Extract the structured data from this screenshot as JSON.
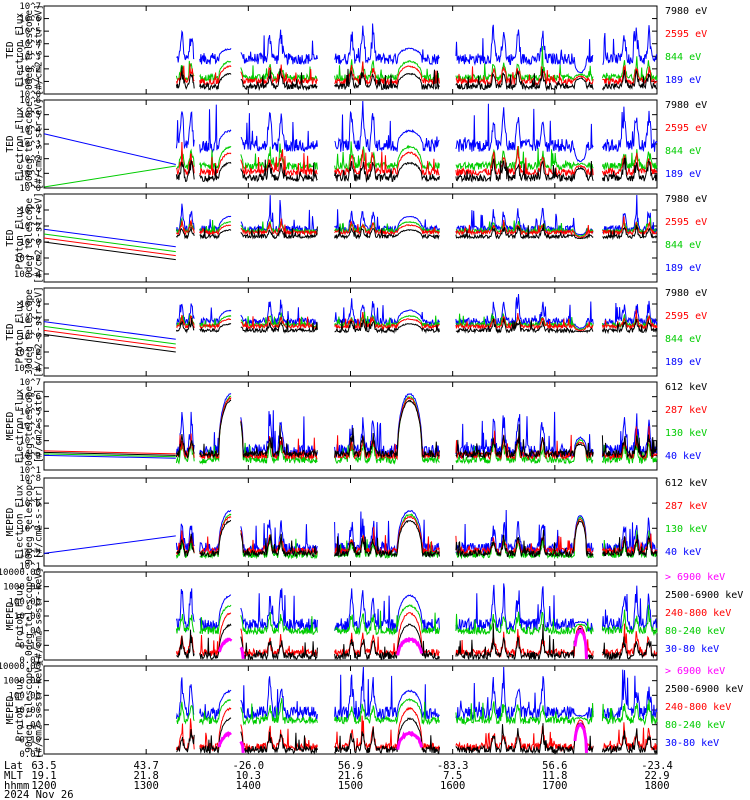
{
  "chart_data": [
    {
      "type": "line",
      "ylabel": [
        "TED",
        "Electron Flux",
        "0deg telescope",
        "[#/cm2-s-str-eV]"
      ],
      "yscale": "log",
      "yticks": [
        [
          "10^0",
          0
        ],
        [
          "10^1",
          1
        ],
        [
          "10^2",
          2
        ],
        [
          "10^3",
          3
        ],
        [
          "10^4",
          4
        ],
        [
          "10^5",
          5
        ],
        [
          "10^6",
          6
        ],
        [
          "10^7",
          7
        ]
      ],
      "ylim": [
        0,
        7
      ],
      "legend": [
        {
          "name": "7980 eV",
          "color": "#000000"
        },
        {
          "name": "2595 eV",
          "color": "#ff0000"
        },
        {
          "name": "844 eV",
          "color": "#00cc00"
        },
        {
          "name": "189 eV",
          "color": "#0000ff"
        }
      ],
      "levels": {
        "blue": 2.8,
        "green": 1.3,
        "red": 1.0,
        "black": 0.6
      },
      "peak_levels": [
        3.6,
        2.6,
        2.2,
        1.6
      ],
      "pass_peak": 1.7,
      "pre": null
    },
    {
      "type": "line",
      "ylabel": [
        "TED",
        "Electron Flux",
        "30deg telescope",
        "[#/cm2-s-str-eV]"
      ],
      "yscale": "log",
      "yticks": [
        [
          "10^0",
          0
        ],
        [
          "10^1",
          1
        ],
        [
          "10^2",
          2
        ],
        [
          "10^3",
          3
        ],
        [
          "10^4",
          4
        ],
        [
          "10^5",
          5
        ],
        [
          "10^6",
          6
        ]
      ],
      "ylim": [
        0,
        6
      ],
      "legend": [
        {
          "name": "7980 eV",
          "color": "#000000"
        },
        {
          "name": "2595 eV",
          "color": "#ff0000"
        },
        {
          "name": "844 eV",
          "color": "#00cc00"
        },
        {
          "name": "189 eV",
          "color": "#0000ff"
        }
      ],
      "levels": {
        "blue": 2.9,
        "green": 1.5,
        "red": 1.1,
        "black": 0.7
      },
      "peak_levels": [
        3.9,
        2.8,
        2.4,
        1.7
      ],
      "pass_peak": 1.8,
      "pre": [
        {
          "color": "#0000ff",
          "from": 3.7,
          "to": 1.6
        },
        {
          "color": "#00cc00",
          "from": -0.7,
          "to": 1.5
        }
      ]
    },
    {
      "type": "line",
      "ylabel": [
        "TED",
        "Proton Flux",
        "0deg telescope",
        "[#/cm2-s-str-eV]"
      ],
      "yscale": "log",
      "yticks": [
        [
          "10^-4",
          -4
        ],
        [
          "10^-2",
          -2
        ],
        [
          "10^0",
          0
        ],
        [
          "10^2",
          2
        ],
        [
          "10^4",
          4
        ]
      ],
      "ylim": [
        -5,
        6
      ],
      "legend": [
        {
          "name": "7980 eV",
          "color": "#000000"
        },
        {
          "name": "2595 eV",
          "color": "#ff0000"
        },
        {
          "name": "844 eV",
          "color": "#00cc00"
        },
        {
          "name": "189 eV",
          "color": "#0000ff"
        }
      ],
      "levels": {
        "blue": 1.6,
        "green": 1.4,
        "red": 1.2,
        "black": 0.7
      },
      "peak_levels": [
        3.2,
        2.5,
        2.1,
        1.5
      ],
      "pass_peak": 0.9,
      "pre": [
        {
          "color": "#0000ff",
          "from": 1.6,
          "to": -0.6
        },
        {
          "color": "#00cc00",
          "from": 1.0,
          "to": -1.2
        },
        {
          "color": "#ff0000",
          "from": 0.5,
          "to": -1.7
        },
        {
          "color": "#000000",
          "from": 0.0,
          "to": -2.2
        }
      ]
    },
    {
      "type": "line",
      "ylabel": [
        "TED",
        "Proton Flux",
        "30deg telescope",
        "[#/cm2-s-str-eV]"
      ],
      "yscale": "log",
      "yticks": [
        [
          "10^-4",
          -4
        ],
        [
          "10^-2",
          -2
        ],
        [
          "10^0",
          0
        ],
        [
          "10^2",
          2
        ],
        [
          "10^4",
          4
        ]
      ],
      "ylim": [
        -5,
        6
      ],
      "legend": [
        {
          "name": "7980 eV",
          "color": "#000000"
        },
        {
          "name": "2595 eV",
          "color": "#ff0000"
        },
        {
          "name": "844 eV",
          "color": "#00cc00"
        },
        {
          "name": "189 eV",
          "color": "#0000ff"
        }
      ],
      "levels": {
        "blue": 1.8,
        "green": 1.4,
        "red": 1.2,
        "black": 0.7
      },
      "peak_levels": [
        3.2,
        2.5,
        2.1,
        1.5
      ],
      "pass_peak": 1.0,
      "pre": [
        {
          "color": "#0000ff",
          "from": 1.8,
          "to": -0.4
        },
        {
          "color": "#00cc00",
          "from": 1.2,
          "to": -1.0
        },
        {
          "color": "#ff0000",
          "from": 0.7,
          "to": -1.5
        },
        {
          "color": "#000000",
          "from": 0.2,
          "to": -2.0
        }
      ]
    },
    {
      "type": "line",
      "ylabel": [
        "MEPED",
        "Electron Flux",
        "0deg telescope",
        "[#/cm2-s-str]"
      ],
      "yscale": "log",
      "yticks": [
        [
          "10^1",
          1
        ],
        [
          "10^2",
          2
        ],
        [
          "10^3",
          3
        ],
        [
          "10^4",
          4
        ],
        [
          "10^5",
          5
        ],
        [
          "10^6",
          6
        ],
        [
          "10^7",
          7
        ]
      ],
      "ylim": [
        1,
        7
      ],
      "legend": [
        {
          "name": "612 keV",
          "color": "#000000"
        },
        {
          "name": "287 keV",
          "color": "#ff0000"
        },
        {
          "name": "130 keV",
          "color": "#00cc00"
        },
        {
          "name": "40 keV",
          "color": "#0000ff"
        }
      ],
      "levels": {
        "blue": 2.3,
        "green": 1.7,
        "red": 2.0,
        "black": 2.1
      },
      "peak_levels": [
        6.2,
        6.0,
        5.9,
        5.7
      ],
      "pass_peak": 3.2,
      "pre": [
        {
          "color": "#ff0000",
          "from": 2.3,
          "to": 2.1
        },
        {
          "color": "#000000",
          "from": 2.2,
          "to": 2.0
        },
        {
          "color": "#00cc00",
          "from": 2.1,
          "to": 1.9
        },
        {
          "color": "#0000ff",
          "from": 2.0,
          "to": 1.8
        }
      ]
    },
    {
      "type": "line",
      "ylabel": [
        "MEPED",
        "Electron Flux",
        "90deg telescope",
        "[#/cm2-s-str]"
      ],
      "yscale": "log",
      "yticks": [
        [
          "10^1",
          1
        ],
        [
          "10^2",
          2
        ],
        [
          "10^4",
          4
        ],
        [
          "10^6",
          6
        ],
        [
          "10^8",
          8
        ]
      ],
      "ylim": [
        1,
        8
      ],
      "legend": [
        {
          "name": "612 keV",
          "color": "#000000"
        },
        {
          "name": "287 keV",
          "color": "#ff0000"
        },
        {
          "name": "130 keV",
          "color": "#00cc00"
        },
        {
          "name": "40 keV",
          "color": "#0000ff"
        }
      ],
      "levels": {
        "blue": 2.4,
        "green": 1.9,
        "red": 2.2,
        "black": 2.0
      },
      "peak_levels": [
        5.4,
        5.1,
        4.9,
        4.6
      ],
      "pass_peak": 5.0,
      "pre": [
        {
          "color": "#0000ff",
          "from": 2.0,
          "to": 3.4
        }
      ]
    },
    {
      "type": "line",
      "ylabel": [
        "MEPED",
        "Proton Flux",
        "0deg telescope",
        "[#/cm2-s-str-keV]"
      ],
      "yscale": "log",
      "yticks": [
        [
          "0.01",
          -2
        ],
        [
          "0.10",
          -1
        ],
        [
          "1.00",
          0
        ],
        [
          "10.00",
          1
        ],
        [
          "100.00",
          2
        ],
        [
          "1000.00",
          3
        ],
        [
          "10000.00",
          4
        ]
      ],
      "ylim": [
        -2,
        4
      ],
      "legend": [
        {
          "name": "> 6900 keV",
          "color": "#ff00ff"
        },
        {
          "name": "2500-6900 keV",
          "color": "#000000"
        },
        {
          "name": "240-800 keV",
          "color": "#ff0000"
        },
        {
          "name": "80-240 keV",
          "color": "#00cc00"
        },
        {
          "name": "30-80 keV",
          "color": "#0000ff"
        }
      ],
      "levels": {
        "blue": 0.4,
        "green": 0.0,
        "red": -1.5,
        "black": -1.7
      },
      "peak_levels": [
        2.4,
        1.7,
        1.2,
        0.4,
        -0.6
      ],
      "pass_peak": 0.6,
      "pre": null
    },
    {
      "type": "line",
      "ylabel": [
        "MEPED",
        "Proton Flux",
        "90deg telescope",
        "[#/cm2-s-str-keV]"
      ],
      "yscale": "log",
      "yticks": [
        [
          "0.01",
          -2
        ],
        [
          "0.10",
          -1
        ],
        [
          "1.00",
          0
        ],
        [
          "10.00",
          1
        ],
        [
          "100.00",
          2
        ],
        [
          "1000.00",
          3
        ],
        [
          "10000.00",
          4
        ]
      ],
      "ylim": [
        -2,
        4
      ],
      "legend": [
        {
          "name": "> 6900 keV",
          "color": "#ff00ff"
        },
        {
          "name": "2500-6900 keV",
          "color": "#000000"
        },
        {
          "name": "240-800 keV",
          "color": "#ff0000"
        },
        {
          "name": "80-240 keV",
          "color": "#00cc00"
        },
        {
          "name": "30-80 keV",
          "color": "#0000ff"
        }
      ],
      "levels": {
        "blue": 0.8,
        "green": 0.3,
        "red": -1.5,
        "black": -1.7
      },
      "peak_levels": [
        2.3,
        1.7,
        1.1,
        0.4,
        -0.6
      ],
      "pass_peak": 0.6,
      "pre": null
    }
  ],
  "xaxis": {
    "time_range": [
      1200,
      1800
    ],
    "row_labels": [
      "Lat",
      "MLT",
      "hhmm"
    ],
    "ticks": [
      {
        "lat": "63.5",
        "mlt": "19.1",
        "hhmm": "1200"
      },
      {
        "lat": "43.7",
        "mlt": "21.8",
        "hhmm": "1300"
      },
      {
        "lat": "-26.0",
        "mlt": "10.3",
        "hhmm": "1400"
      },
      {
        "lat": "56.9",
        "mlt": "21.6",
        "hhmm": "1500"
      },
      {
        "lat": "-83.3",
        "mlt": "7.5",
        "hhmm": "1600"
      },
      {
        "lat": "56.6",
        "mlt": "11.8",
        "hhmm": "1700"
      },
      {
        "lat": "-23.4",
        "mlt": "22.9",
        "hhmm": "1800"
      }
    ],
    "date": "2024 Nov 26"
  }
}
